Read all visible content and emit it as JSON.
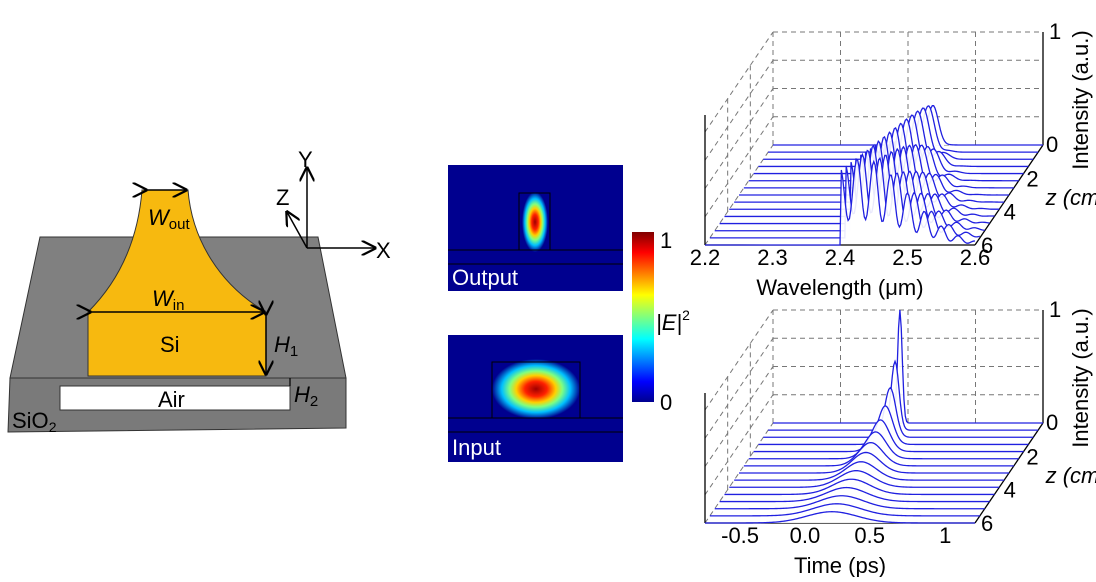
{
  "panel_a": {
    "axis_y": "Y",
    "axis_z": "Z",
    "axis_x": "X",
    "w_out": [
      "W",
      "out"
    ],
    "w_in": [
      "W",
      "in"
    ],
    "si": "Si",
    "h1": [
      "H",
      "1"
    ],
    "h2": [
      "H",
      "2"
    ],
    "air": "Air",
    "sio2": [
      "SiO",
      "2"
    ]
  },
  "panel_b": {
    "output": "Output",
    "input": "Input",
    "colorbar_max": "1",
    "colorbar_min": "0",
    "colorbar_label": [
      "|E|",
      "2"
    ]
  },
  "panel_c": {
    "xticks": [
      "2.2",
      "2.3",
      "2.4",
      "2.5",
      "2.6"
    ],
    "xlabel": "Wavelength (μm)",
    "ylabel": "Intensity (a.u.)",
    "yticks": [
      "0",
      "1"
    ],
    "zticks": [
      "2",
      "4",
      "6"
    ],
    "zlabel": "z (cm)"
  },
  "panel_d": {
    "xticks": [
      "-0.5",
      "0.0",
      "0.5",
      "1"
    ],
    "xlabel": "Time (ps)",
    "ylabel": "Intensity (a.u.)",
    "yticks": [
      "0",
      "1"
    ],
    "zticks": [
      "2",
      "4",
      "6"
    ],
    "zlabel": "z (cm)"
  }
}
